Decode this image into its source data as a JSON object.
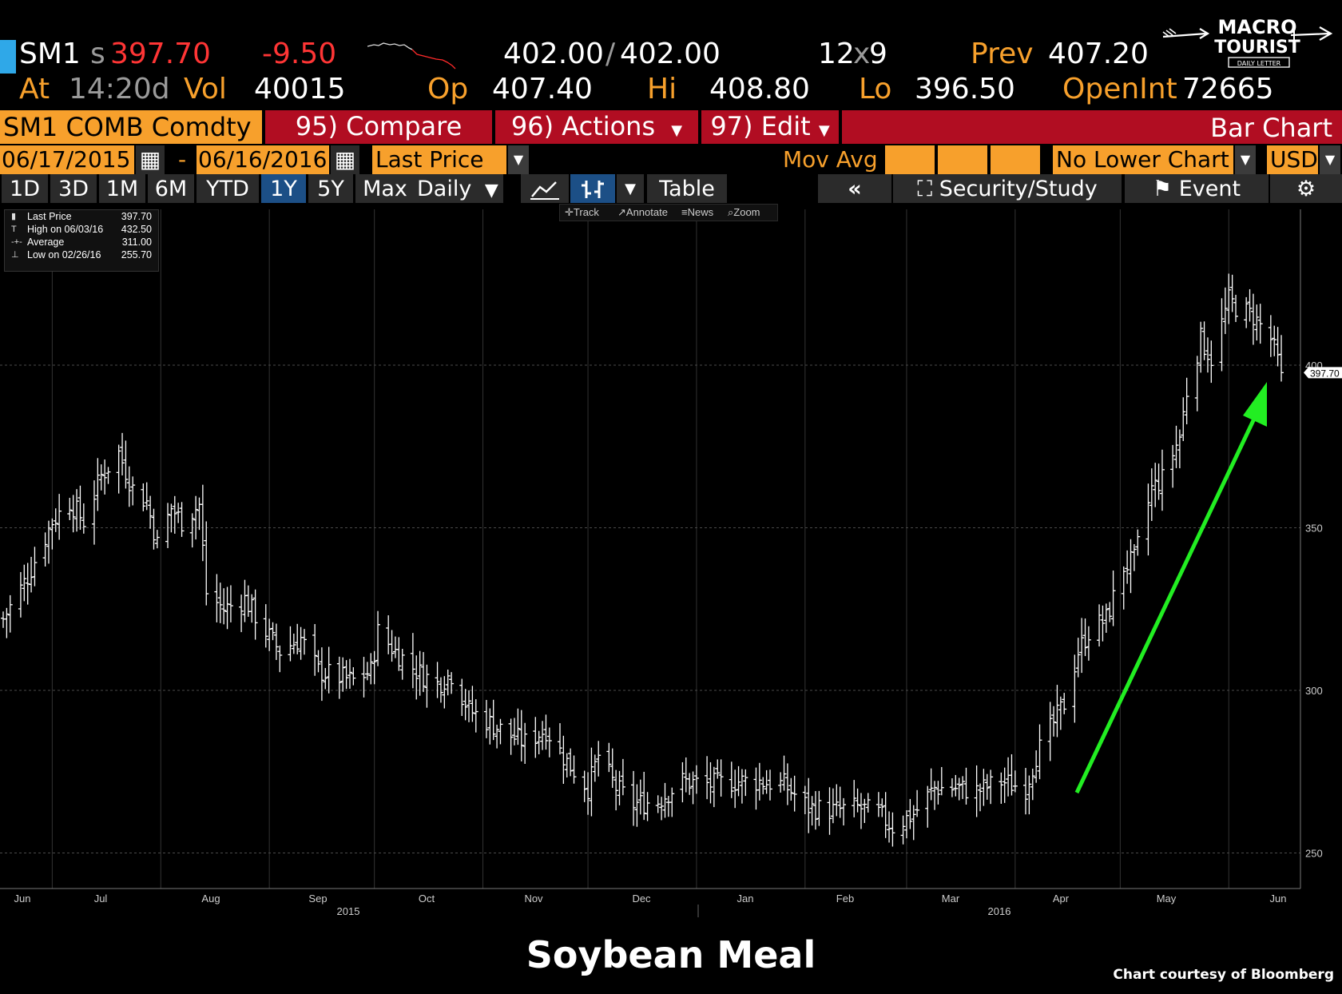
{
  "quote": {
    "ticker": "SM1",
    "settle_prefix": "s",
    "last": "397.70",
    "change": "-9.50",
    "bid_ask_bid": "402.00",
    "bid_ask_ask": "402.00",
    "size_a": "12",
    "size_sep": "x",
    "size_b": "9",
    "prev_label": "Prev",
    "prev": "407.20",
    "at_label": "At",
    "at_time": "14:20d",
    "vol_label": "Vol",
    "vol": "40015",
    "op_label": "Op",
    "op": "407.40",
    "hi_label": "Hi",
    "hi": "408.80",
    "lo_label": "Lo",
    "lo": "396.50",
    "openint_label": "OpenInt",
    "openint": "72665"
  },
  "toolbar": {
    "security": "SM1 COMB Comdty",
    "compare": "95) Compare",
    "actions": "96) Actions",
    "edit": "97) Edit",
    "chart_type": "Bar Chart"
  },
  "settings": {
    "start_date": "06/17/2015",
    "dash": "-",
    "end_date": "06/16/2016",
    "field": "Last Price",
    "mov_avg": "Mov Avg",
    "lower_chart": "No Lower Chart",
    "currency": "USD"
  },
  "periods": [
    "1D",
    "3D",
    "1M",
    "6M",
    "YTD",
    "1Y",
    "5Y",
    "Max"
  ],
  "selected_period": "1Y",
  "frequency": "Daily",
  "table_label": "Table",
  "security_study": "Security/Study",
  "event": "Event",
  "tools": {
    "track": "Track",
    "annotate": "Annotate",
    "news": "News",
    "zoom": "Zoom"
  },
  "legend": [
    {
      "label": "Last Price",
      "value": "397.70"
    },
    {
      "label": "High on 06/03/16",
      "value": "432.50"
    },
    {
      "label": "Average",
      "value": "311.00"
    },
    {
      "label": "Low on 02/26/16",
      "value": "255.70"
    }
  ],
  "logo": {
    "line1": "MACRO",
    "line2": "TOURIST",
    "line3": "DAILY LETTER"
  },
  "caption": "Soybean Meal",
  "credit": "Chart courtesy of Bloomberg",
  "colors": {
    "orange": "#f7a02c",
    "red": "#ff3535",
    "arrow": "#22ee22",
    "bars": "#ffffff"
  },
  "chart_data": {
    "type": "bar",
    "style": "ohlc",
    "ylim": [
      240,
      455
    ],
    "yticks": [
      250,
      300,
      350,
      400
    ],
    "last_price_tag": "397.70",
    "x_month_ticks": [
      "Jun",
      "Jul",
      "Aug",
      "Sep",
      "Oct",
      "Nov",
      "Dec",
      "Jan",
      "Feb",
      "Mar",
      "Apr",
      "May",
      "Jun"
    ],
    "x_year_ticks": [
      "2015",
      "2016"
    ],
    "grid": true,
    "series": [
      {
        "values": [
          {
            "x": "2015-06-17",
            "y": 322
          },
          {
            "x": "2015-06-24",
            "y": 335
          },
          {
            "x": "2015-07-01",
            "y": 352
          },
          {
            "x": "2015-07-06",
            "y": 358
          },
          {
            "x": "2015-07-10",
            "y": 352
          },
          {
            "x": "2015-07-15",
            "y": 366
          },
          {
            "x": "2015-07-20",
            "y": 373
          },
          {
            "x": "2015-07-24",
            "y": 362
          },
          {
            "x": "2015-07-28",
            "y": 358
          },
          {
            "x": "2015-07-31",
            "y": 345
          },
          {
            "x": "2015-08-04",
            "y": 356
          },
          {
            "x": "2015-08-07",
            "y": 352
          },
          {
            "x": "2015-08-12",
            "y": 357
          },
          {
            "x": "2015-08-14",
            "y": 330
          },
          {
            "x": "2015-08-19",
            "y": 325
          },
          {
            "x": "2015-08-25",
            "y": 328
          },
          {
            "x": "2015-08-31",
            "y": 318
          },
          {
            "x": "2015-09-04",
            "y": 312
          },
          {
            "x": "2015-09-10",
            "y": 316
          },
          {
            "x": "2015-09-15",
            "y": 306
          },
          {
            "x": "2015-09-21",
            "y": 304
          },
          {
            "x": "2015-09-25",
            "y": 303
          },
          {
            "x": "2015-09-30",
            "y": 306
          },
          {
            "x": "2015-10-02",
            "y": 318
          },
          {
            "x": "2015-10-07",
            "y": 312
          },
          {
            "x": "2015-10-13",
            "y": 306
          },
          {
            "x": "2015-10-19",
            "y": 302
          },
          {
            "x": "2015-10-23",
            "y": 305
          },
          {
            "x": "2015-10-28",
            "y": 294
          },
          {
            "x": "2015-11-03",
            "y": 290
          },
          {
            "x": "2015-11-09",
            "y": 286
          },
          {
            "x": "2015-11-13",
            "y": 284
          },
          {
            "x": "2015-11-19",
            "y": 288
          },
          {
            "x": "2015-11-25",
            "y": 278
          },
          {
            "x": "2015-12-01",
            "y": 270
          },
          {
            "x": "2015-12-04",
            "y": 280
          },
          {
            "x": "2015-12-09",
            "y": 270
          },
          {
            "x": "2015-12-14",
            "y": 265
          },
          {
            "x": "2015-12-21",
            "y": 266
          },
          {
            "x": "2015-12-28",
            "y": 272
          },
          {
            "x": "2016-01-05",
            "y": 271
          },
          {
            "x": "2016-01-12",
            "y": 272
          },
          {
            "x": "2016-01-19",
            "y": 272
          },
          {
            "x": "2016-01-26",
            "y": 271
          },
          {
            "x": "2016-02-02",
            "y": 264
          },
          {
            "x": "2016-02-09",
            "y": 263
          },
          {
            "x": "2016-02-16",
            "y": 264
          },
          {
            "x": "2016-02-22",
            "y": 262
          },
          {
            "x": "2016-02-26",
            "y": 258
          },
          {
            "x": "2016-03-03",
            "y": 262
          },
          {
            "x": "2016-03-09",
            "y": 270
          },
          {
            "x": "2016-03-15",
            "y": 270
          },
          {
            "x": "2016-03-21",
            "y": 269
          },
          {
            "x": "2016-03-28",
            "y": 272
          },
          {
            "x": "2016-04-04",
            "y": 270
          },
          {
            "x": "2016-04-07",
            "y": 280
          },
          {
            "x": "2016-04-12",
            "y": 290
          },
          {
            "x": "2016-04-15",
            "y": 296
          },
          {
            "x": "2016-04-19",
            "y": 312
          },
          {
            "x": "2016-04-22",
            "y": 318
          },
          {
            "x": "2016-04-27",
            "y": 322
          },
          {
            "x": "2016-05-02",
            "y": 338
          },
          {
            "x": "2016-05-05",
            "y": 340
          },
          {
            "x": "2016-05-10",
            "y": 362
          },
          {
            "x": "2016-05-13",
            "y": 365
          },
          {
            "x": "2016-05-18",
            "y": 378
          },
          {
            "x": "2016-05-20",
            "y": 392
          },
          {
            "x": "2016-05-24",
            "y": 408
          },
          {
            "x": "2016-05-27",
            "y": 402
          },
          {
            "x": "2016-06-01",
            "y": 420
          },
          {
            "x": "2016-06-03",
            "y": 418
          },
          {
            "x": "2016-06-08",
            "y": 415
          },
          {
            "x": "2016-06-13",
            "y": 408
          },
          {
            "x": "2016-06-16",
            "y": 397.7
          }
        ]
      }
    ]
  }
}
